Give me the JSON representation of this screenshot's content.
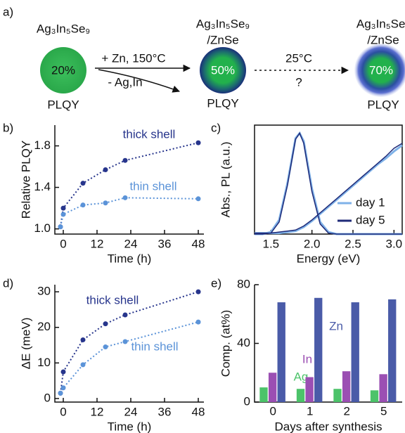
{
  "schematic": {
    "label": "a)",
    "stage1": {
      "formula": "Ag₃In₅Se₉",
      "plqy": "20%",
      "plqy_label": "PLQY"
    },
    "step1": {
      "above": "+ Zn, 150°C",
      "below": "- Ag,In"
    },
    "stage2": {
      "formula": "Ag₃In₅Se₉",
      "shell": "/ZnSe",
      "plqy": "50%",
      "plqy_label": "PLQY"
    },
    "step2": {
      "above": "25°C",
      "below": "?"
    },
    "stage3": {
      "formula": "Ag₃In₅Se₉",
      "shell": "/ZnSe",
      "plqy": "70%",
      "plqy_label": "PLQY"
    }
  },
  "chart_data": [
    {
      "type": "line",
      "label": "b)",
      "x_label": "Time (h)",
      "y_label": "Relative PLQY",
      "xlim": [
        -3,
        50
      ],
      "ylim": [
        0.95,
        2.0
      ],
      "xticks": [
        0,
        12,
        24,
        36,
        48
      ],
      "yticks": [
        {
          "value": 1,
          "label": "1.0"
        },
        1.4,
        1.8
      ],
      "x": [
        -1,
        0,
        7,
        15,
        22,
        48
      ],
      "series": [
        {
          "name": "thick shell",
          "color": "#27358c",
          "values": [
            1.02,
            1.2,
            1.44,
            1.57,
            1.66,
            1.83
          ]
        },
        {
          "name": "thin shell",
          "color": "#5b93d8",
          "values": [
            1.02,
            1.14,
            1.23,
            1.25,
            1.3,
            1.29
          ]
        }
      ]
    },
    {
      "type": "spectrum",
      "label": "c)",
      "x_label": "Energy (eV)",
      "y_label": "Abs., PL (a.u.)",
      "xlim": [
        1.3,
        3.1
      ],
      "ylim": [
        0,
        1.08
      ],
      "xticks": [
        1.5,
        {
          "value": 2,
          "label": "2.0"
        },
        2.5,
        {
          "value": 3,
          "label": "3.0"
        }
      ],
      "x": [
        1.3,
        1.4,
        1.5,
        1.6,
        1.7,
        1.8,
        1.85,
        1.9,
        2.0,
        2.1,
        2.2,
        2.3,
        2.4,
        2.5,
        2.6,
        2.7,
        2.8,
        2.9,
        3.0,
        3.1
      ],
      "series": [
        {
          "name": "day 1",
          "color": "#7fb2e8",
          "pl_values": [
            0,
            0,
            0.02,
            0.14,
            0.5,
            0.95,
            1.0,
            0.92,
            0.45,
            0.12,
            0.02,
            0,
            0,
            0,
            0,
            0,
            0,
            0,
            0,
            0
          ],
          "abs_values": [
            0.01,
            0.01,
            0.01,
            0.01,
            0.02,
            0.03,
            0.05,
            0.07,
            0.13,
            0.2,
            0.27,
            0.34,
            0.41,
            0.48,
            0.55,
            0.62,
            0.69,
            0.75,
            0.82,
            0.88
          ]
        },
        {
          "name": "day 5",
          "color": "#1f2a78",
          "pl_values": [
            0,
            0,
            0.01,
            0.12,
            0.48,
            0.94,
            1.0,
            0.9,
            0.42,
            0.1,
            0.01,
            0,
            0,
            0,
            0,
            0,
            0,
            0,
            0,
            0
          ],
          "abs_values": [
            0.01,
            0.01,
            0.01,
            0.02,
            0.03,
            0.04,
            0.06,
            0.08,
            0.14,
            0.21,
            0.28,
            0.35,
            0.42,
            0.49,
            0.56,
            0.63,
            0.7,
            0.77,
            0.85,
            0.9
          ]
        }
      ]
    },
    {
      "type": "line",
      "label": "d)",
      "x_label": "Time (h)",
      "y_label": "ΔE (meV)",
      "xlim": [
        -3,
        50
      ],
      "ylim": [
        -1,
        32
      ],
      "xticks": [
        0,
        12,
        24,
        36,
        48
      ],
      "yticks": [
        0,
        10,
        20,
        30
      ],
      "x": [
        -1,
        0,
        7,
        15,
        22,
        48
      ],
      "series": [
        {
          "name": "thick shell",
          "color": "#27358c",
          "values": [
            1.5,
            7.5,
            16.5,
            21,
            23.5,
            30
          ]
        },
        {
          "name": "thin shell",
          "color": "#5b93d8",
          "values": [
            1.5,
            3,
            9.5,
            14.5,
            16,
            21.5
          ]
        }
      ]
    },
    {
      "type": "bar",
      "label": "e)",
      "x_label": "Days after synthesis",
      "y_label": "Comp. (at%)",
      "ylim": [
        0,
        80
      ],
      "yticks": [
        0,
        40,
        80
      ],
      "categories": [
        "0",
        "1",
        "2",
        "5"
      ],
      "series": [
        {
          "name": "Ag",
          "color": "#4cc36a",
          "values": [
            10,
            9,
            9,
            8
          ]
        },
        {
          "name": "In",
          "color": "#9b4fb3",
          "values": [
            20,
            17,
            21,
            19
          ]
        },
        {
          "name": "Zn",
          "color": "#4a5ba8",
          "values": [
            68,
            71,
            68,
            70
          ]
        }
      ]
    }
  ]
}
